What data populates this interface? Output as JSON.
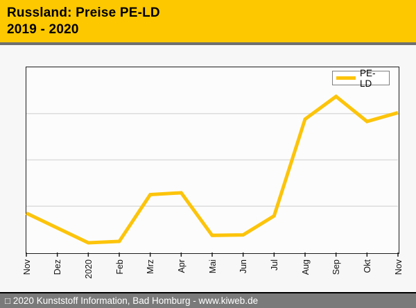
{
  "header": {
    "title_line1": "Russland: Preise PE-LD",
    "title_line2": "2019 - 2020",
    "background": "#FDC800",
    "text_color": "#000000"
  },
  "legend": {
    "label": "PE-LD",
    "swatch_color": "#FCC40B"
  },
  "footer": {
    "text": "□ 2020 Kunststoff Information, Bad Homburg - www.kiweb.de",
    "background": "#7A7A7A",
    "text_color": "#FFFFFF"
  },
  "chart_data": {
    "type": "line",
    "title": "Russland: Preise PE-LD",
    "subtitle": "2019 - 2020",
    "categories": [
      "Nov",
      "Dez",
      "2020",
      "Feb",
      "Mrz",
      "Apr",
      "Mai",
      "Jun",
      "Jul",
      "Aug",
      "Sep",
      "Okt",
      "Nov"
    ],
    "series": [
      {
        "name": "PE-LD",
        "color": "#FCC40B",
        "stroke_width": 5,
        "values": [
          0.85,
          0.53,
          0.21,
          0.24,
          1.25,
          1.29,
          0.37,
          0.38,
          0.79,
          2.88,
          3.37,
          2.83,
          3.02
        ]
      }
    ],
    "ylim": [
      0,
      4
    ],
    "y_axis_labels": "none",
    "x_label_rotation": -90,
    "gridlines": {
      "horizontal": 3,
      "color": "#dcdcdc",
      "vertical": 0
    },
    "legend_position": "top-right",
    "plot_background": "#fcfcfc",
    "note": "y-axis has no tick labels; values are relative units where one gridline interval equals 1"
  }
}
